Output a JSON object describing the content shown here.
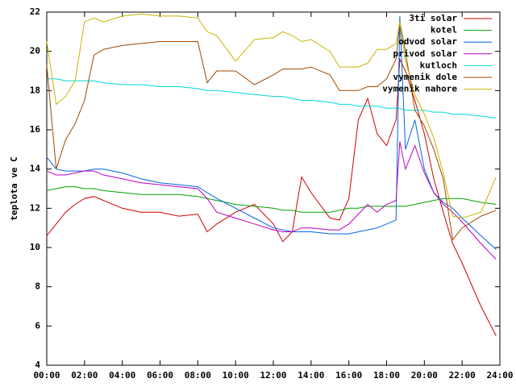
{
  "chart_data": {
    "type": "line",
    "y_label": "teplota ve C",
    "x": [
      0,
      0.5,
      1,
      1.5,
      2,
      2.5,
      3,
      4,
      5,
      6,
      7,
      8,
      8.5,
      9,
      10,
      11,
      12,
      12.5,
      13,
      13.5,
      14,
      15,
      15.5,
      16,
      16.5,
      17,
      17.5,
      18,
      18.5,
      18.7,
      19,
      19.5,
      20,
      20.5,
      21,
      21.5,
      22,
      23,
      23.8
    ],
    "xlim": [
      0,
      24
    ],
    "xticks": [
      {
        "value": 0,
        "label": "00:00"
      },
      {
        "value": 2,
        "label": "02:00"
      },
      {
        "value": 4,
        "label": "04:00"
      },
      {
        "value": 6,
        "label": "06:00"
      },
      {
        "value": 8,
        "label": "08:00"
      },
      {
        "value": 10,
        "label": "10:00"
      },
      {
        "value": 12,
        "label": "12:00"
      },
      {
        "value": 14,
        "label": "14:00"
      },
      {
        "value": 16,
        "label": "16:00"
      },
      {
        "value": 18,
        "label": "18:00"
      },
      {
        "value": 20,
        "label": "20:00"
      },
      {
        "value": 22,
        "label": "22:00"
      },
      {
        "value": 24,
        "label": "24:00"
      }
    ],
    "ylim": [
      4,
      22
    ],
    "yticks": [
      4,
      6,
      8,
      10,
      12,
      14,
      16,
      18,
      20,
      22
    ],
    "legend": "top-right",
    "series": [
      {
        "name": "3ti solar",
        "color": "#d00000",
        "values": [
          10.6,
          11.2,
          11.8,
          12.2,
          12.5,
          12.6,
          12.4,
          12.0,
          11.8,
          11.8,
          11.6,
          11.7,
          10.8,
          11.2,
          11.8,
          12.2,
          11.2,
          10.3,
          10.8,
          13.6,
          12.8,
          11.5,
          11.4,
          12.5,
          16.5,
          17.6,
          15.8,
          15.2,
          16.5,
          19.6,
          19.0,
          17.5,
          15.8,
          13.5,
          11.8,
          10.2,
          9.2,
          7.0,
          5.5
        ]
      },
      {
        "name": "kotel",
        "color": "#00a000",
        "values": [
          12.9,
          13.0,
          13.1,
          13.1,
          13.0,
          13.0,
          12.9,
          12.8,
          12.7,
          12.7,
          12.7,
          12.6,
          12.5,
          12.4,
          12.2,
          12.1,
          12.0,
          11.9,
          11.9,
          11.8,
          11.8,
          11.8,
          11.9,
          12.0,
          12.0,
          12.1,
          12.1,
          12.1,
          12.1,
          12.1,
          12.1,
          12.2,
          12.3,
          12.4,
          12.5,
          12.5,
          12.5,
          12.3,
          12.2
        ]
      },
      {
        "name": "odvod solar",
        "color": "#0066e0",
        "values": [
          14.6,
          14.0,
          13.9,
          13.9,
          13.9,
          14.0,
          14.0,
          13.8,
          13.5,
          13.3,
          13.2,
          13.1,
          12.8,
          12.5,
          12.0,
          11.5,
          11.0,
          10.9,
          10.8,
          10.8,
          10.8,
          10.7,
          10.7,
          10.7,
          10.8,
          10.9,
          11.0,
          11.2,
          11.4,
          21.8,
          15.0,
          16.5,
          14.0,
          12.8,
          12.3,
          12.0,
          11.5,
          10.6,
          9.9
        ]
      },
      {
        "name": "privod solar",
        "color": "#c000c0",
        "values": [
          13.9,
          13.7,
          13.7,
          13.8,
          13.9,
          13.9,
          13.7,
          13.5,
          13.3,
          13.2,
          13.1,
          13.0,
          12.5,
          11.8,
          11.5,
          11.2,
          10.9,
          10.8,
          10.8,
          11.0,
          11.0,
          10.9,
          10.9,
          11.2,
          11.7,
          12.2,
          11.8,
          12.2,
          12.4,
          15.4,
          14.0,
          15.2,
          13.8,
          12.8,
          12.2,
          11.8,
          11.3,
          10.2,
          9.4
        ]
      },
      {
        "name": "kutloch",
        "color": "#00d8d8",
        "values": [
          18.6,
          18.6,
          18.5,
          18.5,
          18.5,
          18.5,
          18.4,
          18.3,
          18.3,
          18.2,
          18.2,
          18.1,
          18.0,
          18.0,
          17.9,
          17.8,
          17.7,
          17.7,
          17.6,
          17.5,
          17.5,
          17.4,
          17.3,
          17.3,
          17.2,
          17.2,
          17.2,
          17.1,
          17.1,
          17.1,
          17.0,
          17.0,
          17.0,
          16.9,
          16.9,
          16.8,
          16.8,
          16.7,
          16.6
        ]
      },
      {
        "name": "vymenik dole",
        "color": "#a04800",
        "values": [
          19.3,
          14.0,
          15.5,
          16.3,
          17.5,
          19.8,
          20.1,
          20.3,
          20.4,
          20.5,
          20.5,
          20.5,
          18.4,
          19.0,
          19.0,
          18.3,
          18.8,
          19.1,
          19.1,
          19.1,
          19.2,
          18.8,
          18.0,
          18.0,
          18.0,
          18.2,
          18.2,
          18.6,
          19.6,
          21.5,
          20.0,
          17.0,
          16.2,
          15.0,
          13.5,
          10.4,
          11.0,
          11.6,
          11.9
        ]
      },
      {
        "name": "vymenik nahore",
        "color": "#c8b400",
        "values": [
          20.5,
          17.3,
          17.7,
          18.5,
          21.5,
          21.7,
          21.5,
          21.8,
          21.9,
          21.8,
          21.8,
          21.7,
          21.0,
          20.8,
          19.5,
          20.6,
          20.7,
          21.0,
          20.8,
          20.5,
          20.6,
          20.0,
          19.2,
          19.2,
          19.2,
          19.4,
          20.1,
          20.1,
          20.4,
          21.5,
          19.5,
          17.8,
          16.8,
          15.6,
          13.8,
          11.6,
          11.5,
          11.8,
          13.6
        ]
      }
    ]
  }
}
